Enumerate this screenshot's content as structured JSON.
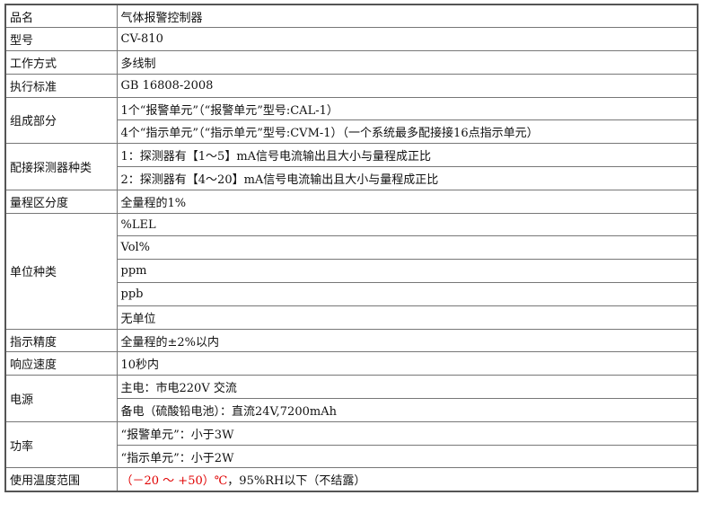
{
  "table": {
    "rows": [
      {
        "label": "品名",
        "values": [
          "气体报警控制器"
        ]
      },
      {
        "label": "型号",
        "values": [
          "CV-810"
        ]
      },
      {
        "label": "工作方式",
        "values": [
          "多线制"
        ]
      },
      {
        "label": "执行标准",
        "values": [
          "GB 16808-2008"
        ]
      },
      {
        "label": "组成部分",
        "values": [
          "1个“报警单元”（“报警单元”型号:CAL-1）",
          "4个“指示单元”（“指示单元”型号:CVM-1）（一个系统最多配接接16点指示单元）"
        ]
      },
      {
        "label": "配接探测器种类",
        "values": [
          "1：探测器有【1～5】mA信号电流输出且大小与量程成正比",
          "2：探测器有【4～20】mA信号电流输出且大小与量程成正比"
        ]
      },
      {
        "label": "量程区分度",
        "values": [
          "全量程的1%"
        ]
      },
      {
        "label": "单位种类",
        "values": [
          "%LEL",
          "Vol%",
          "ppm",
          "ppb",
          "无单位"
        ]
      },
      {
        "label": "指示精度",
        "values": [
          "全量程的±2%以内"
        ]
      },
      {
        "label": "响应速度",
        "values": [
          "10秒内"
        ]
      },
      {
        "label": "电源",
        "values": [
          "主电：市电220V 交流",
          "备电（硫酸铅电池）：直流24V,7200mAh"
        ]
      },
      {
        "label": "功率",
        "values": [
          "“报警单元”：小于3W",
          "“指示单元”：小于2W"
        ]
      },
      {
        "label": "使用温度范围",
        "values": [
          "（－20 ～ +50）℃",
          "，95%RH以下（不结露）"
        ],
        "highlight": 0
      }
    ]
  }
}
